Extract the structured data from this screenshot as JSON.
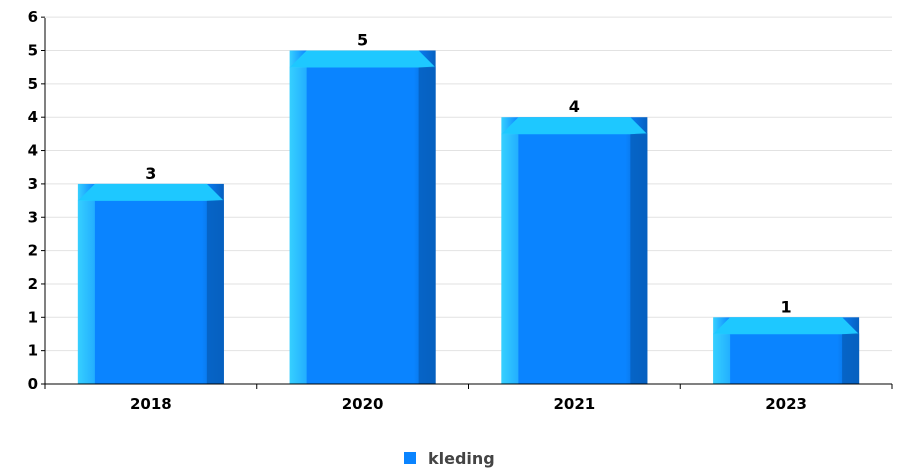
{
  "chart_data": {
    "type": "bar",
    "categories": [
      "2018",
      "2020",
      "2021",
      "2023"
    ],
    "series": [
      {
        "name": "kleding",
        "values": [
          3,
          5,
          4,
          1
        ],
        "color": "#0a84ff"
      }
    ],
    "y_tick_labels": [
      "0",
      "1",
      "1",
      "2",
      "2",
      "3",
      "3",
      "4",
      "4",
      "5",
      "5",
      "6"
    ],
    "y_tick_values": [
      0,
      0.5,
      1,
      1.5,
      2,
      2.5,
      3,
      3.5,
      4,
      4.5,
      5,
      5.5,
      6
    ],
    "ylim": [
      0,
      5.5
    ],
    "grid": true,
    "legend": "bottom-center",
    "colors": {
      "bar_top": "#1ec8ff",
      "bar_left": "#36d0ff",
      "bar_face": "#0a84ff",
      "bar_right": "#0660c0",
      "grid": "#e2e2e2",
      "axis": "#000000"
    }
  }
}
